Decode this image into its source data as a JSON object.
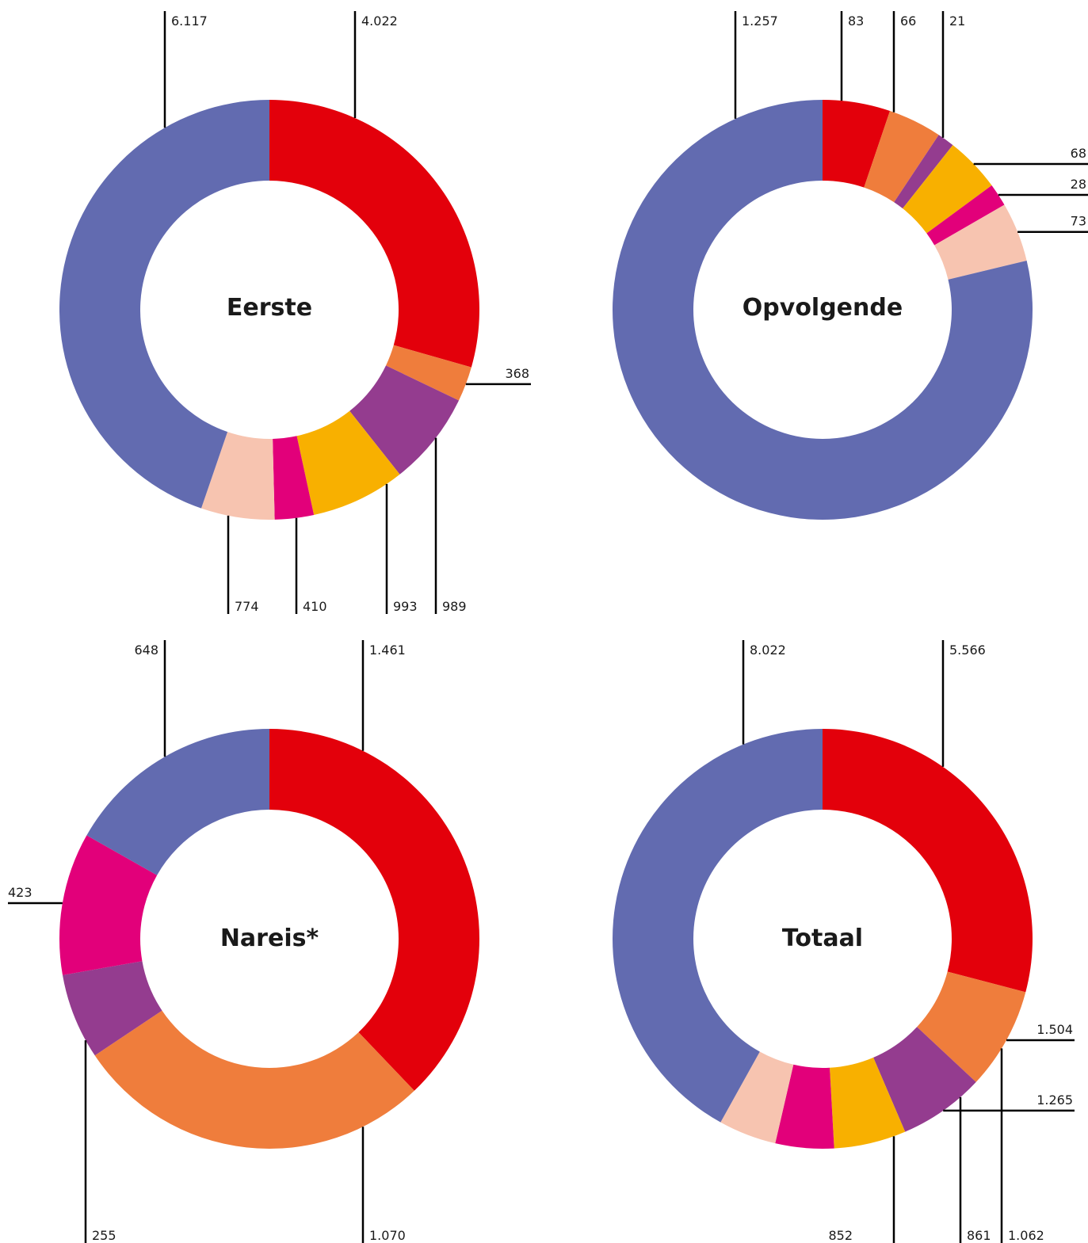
{
  "chart_data": [
    {
      "type": "pie",
      "title": "Eerste",
      "slices": [
        {
          "value": 4022,
          "label": "4.022",
          "color": "#e3000b"
        },
        {
          "value": 368,
          "label": "368",
          "color": "#ef7d3c"
        },
        {
          "value": 989,
          "label": "989",
          "color": "#943c8f"
        },
        {
          "value": 993,
          "label": "993",
          "color": "#f8b000"
        },
        {
          "value": 410,
          "label": "410",
          "color": "#e2007a"
        },
        {
          "value": 774,
          "label": "774",
          "color": "#f7c4b0"
        },
        {
          "value": 6117,
          "label": "6.117",
          "color": "#626bb0"
        }
      ]
    },
    {
      "type": "pie",
      "title": "Opvolgende",
      "slices": [
        {
          "value": 83,
          "label": "83",
          "color": "#e3000b"
        },
        {
          "value": 66,
          "label": "66",
          "color": "#ef7d3c"
        },
        {
          "value": 21,
          "label": "21",
          "color": "#943c8f"
        },
        {
          "value": 68,
          "label": "68",
          "color": "#f8b000"
        },
        {
          "value": 28,
          "label": "28",
          "color": "#e2007a"
        },
        {
          "value": 73,
          "label": "73",
          "color": "#f7c4b0"
        },
        {
          "value": 1257,
          "label": "1.257",
          "color": "#626bb0"
        }
      ]
    },
    {
      "type": "pie",
      "title": "Nareis*",
      "slices": [
        {
          "value": 1461,
          "label": "1.461",
          "color": "#e3000b"
        },
        {
          "value": 1070,
          "label": "1.070",
          "color": "#ef7d3c"
        },
        {
          "value": 255,
          "label": "255",
          "color": "#943c8f"
        },
        {
          "value": 423,
          "label": "423",
          "color": "#e2007a"
        },
        {
          "value": 648,
          "label": "648",
          "color": "#626bb0"
        }
      ]
    },
    {
      "type": "pie",
      "title": "Totaal",
      "slices": [
        {
          "value": 5566,
          "label": "5.566",
          "color": "#e3000b"
        },
        {
          "value": 1504,
          "label": "1.504",
          "color": "#ef7d3c"
        },
        {
          "value": 1265,
          "label": "1.265",
          "color": "#943c8f"
        },
        {
          "value": 1062,
          "label": "1.062",
          "color": "#f8b000"
        },
        {
          "value": 861,
          "label": "861",
          "color": "#e2007a"
        },
        {
          "value": 852,
          "label": "852",
          "color": "#f7c4b0"
        },
        {
          "value": 8022,
          "label": "8.022",
          "color": "#626bb0"
        }
      ]
    }
  ]
}
